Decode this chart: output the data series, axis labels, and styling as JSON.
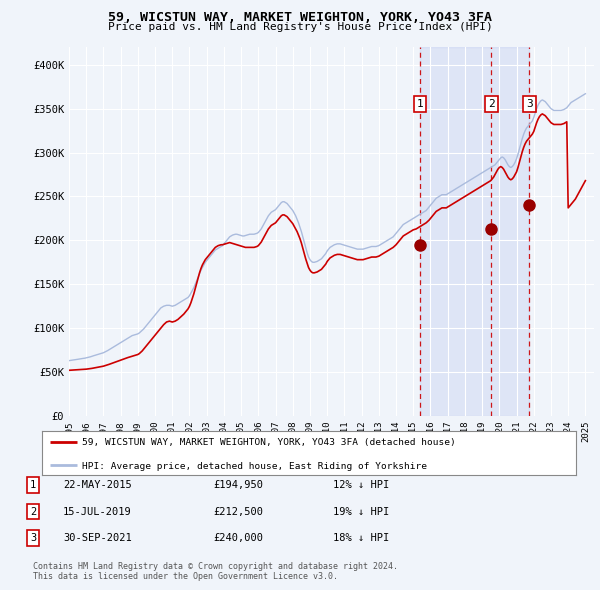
{
  "title": "59, WICSTUN WAY, MARKET WEIGHTON, YORK, YO43 3FA",
  "subtitle": "Price paid vs. HM Land Registry's House Price Index (HPI)",
  "background_color": "#f0f4fa",
  "plot_bg_color": "#f0f4fa",
  "ylim": [
    0,
    420000
  ],
  "yticks": [
    0,
    50000,
    100000,
    150000,
    200000,
    250000,
    300000,
    350000,
    400000
  ],
  "ytick_labels": [
    "£0",
    "£50K",
    "£100K",
    "£150K",
    "£200K",
    "£250K",
    "£300K",
    "£350K",
    "£400K"
  ],
  "xlim_start": 1995.0,
  "xlim_end": 2025.5,
  "xtick_years": [
    1995,
    1996,
    1997,
    1998,
    1999,
    2000,
    2001,
    2002,
    2003,
    2004,
    2005,
    2006,
    2007,
    2008,
    2009,
    2010,
    2011,
    2012,
    2013,
    2014,
    2015,
    2016,
    2017,
    2018,
    2019,
    2020,
    2021,
    2022,
    2023,
    2024,
    2025
  ],
  "red_line_color": "#cc0000",
  "blue_line_color": "#aabbdd",
  "shade_color": "#dde8f5",
  "grid_color": "#ffffff",
  "sale_marker_color": "#990000",
  "sale_vline_color": "#cc0000",
  "legend_label_red": "59, WICSTUN WAY, MARKET WEIGHTON, YORK, YO43 3FA (detached house)",
  "legend_label_blue": "HPI: Average price, detached house, East Riding of Yorkshire",
  "sales": [
    {
      "num": 1,
      "date": "22-MAY-2015",
      "price": 194950,
      "year": 2015.38
    },
    {
      "num": 2,
      "date": "15-JUL-2019",
      "price": 212500,
      "year": 2019.54
    },
    {
      "num": 3,
      "date": "30-SEP-2021",
      "price": 240000,
      "year": 2021.75
    }
  ],
  "sale_rows": [
    {
      "num": 1,
      "date": "22-MAY-2015",
      "price": "£194,950",
      "pct": "12% ↓ HPI"
    },
    {
      "num": 2,
      "date": "15-JUL-2019",
      "price": "£212,500",
      "pct": "19% ↓ HPI"
    },
    {
      "num": 3,
      "date": "30-SEP-2021",
      "price": "£240,000",
      "pct": "18% ↓ HPI"
    }
  ],
  "footer": "Contains HM Land Registry data © Crown copyright and database right 2024.\nThis data is licensed under the Open Government Licence v3.0.",
  "hpi_data": {
    "years": [
      1995.0,
      1995.083,
      1995.167,
      1995.25,
      1995.333,
      1995.417,
      1995.5,
      1995.583,
      1995.667,
      1995.75,
      1995.833,
      1995.917,
      1996.0,
      1996.083,
      1996.167,
      1996.25,
      1996.333,
      1996.417,
      1996.5,
      1996.583,
      1996.667,
      1996.75,
      1996.833,
      1996.917,
      1997.0,
      1997.083,
      1997.167,
      1997.25,
      1997.333,
      1997.417,
      1997.5,
      1997.583,
      1997.667,
      1997.75,
      1997.833,
      1997.917,
      1998.0,
      1998.083,
      1998.167,
      1998.25,
      1998.333,
      1998.417,
      1998.5,
      1998.583,
      1998.667,
      1998.75,
      1998.833,
      1998.917,
      1999.0,
      1999.083,
      1999.167,
      1999.25,
      1999.333,
      1999.417,
      1999.5,
      1999.583,
      1999.667,
      1999.75,
      1999.833,
      1999.917,
      2000.0,
      2000.083,
      2000.167,
      2000.25,
      2000.333,
      2000.417,
      2000.5,
      2000.583,
      2000.667,
      2000.75,
      2000.833,
      2000.917,
      2001.0,
      2001.083,
      2001.167,
      2001.25,
      2001.333,
      2001.417,
      2001.5,
      2001.583,
      2001.667,
      2001.75,
      2001.833,
      2001.917,
      2002.0,
      2002.083,
      2002.167,
      2002.25,
      2002.333,
      2002.417,
      2002.5,
      2002.583,
      2002.667,
      2002.75,
      2002.833,
      2002.917,
      2003.0,
      2003.083,
      2003.167,
      2003.25,
      2003.333,
      2003.417,
      2003.5,
      2003.583,
      2003.667,
      2003.75,
      2003.833,
      2003.917,
      2004.0,
      2004.083,
      2004.167,
      2004.25,
      2004.333,
      2004.417,
      2004.5,
      2004.583,
      2004.667,
      2004.75,
      2004.833,
      2004.917,
      2005.0,
      2005.083,
      2005.167,
      2005.25,
      2005.333,
      2005.417,
      2005.5,
      2005.583,
      2005.667,
      2005.75,
      2005.833,
      2005.917,
      2006.0,
      2006.083,
      2006.167,
      2006.25,
      2006.333,
      2006.417,
      2006.5,
      2006.583,
      2006.667,
      2006.75,
      2006.833,
      2006.917,
      2007.0,
      2007.083,
      2007.167,
      2007.25,
      2007.333,
      2007.417,
      2007.5,
      2007.583,
      2007.667,
      2007.75,
      2007.833,
      2007.917,
      2008.0,
      2008.083,
      2008.167,
      2008.25,
      2008.333,
      2008.417,
      2008.5,
      2008.583,
      2008.667,
      2008.75,
      2008.833,
      2008.917,
      2009.0,
      2009.083,
      2009.167,
      2009.25,
      2009.333,
      2009.417,
      2009.5,
      2009.583,
      2009.667,
      2009.75,
      2009.833,
      2009.917,
      2010.0,
      2010.083,
      2010.167,
      2010.25,
      2010.333,
      2010.417,
      2010.5,
      2010.583,
      2010.667,
      2010.75,
      2010.833,
      2010.917,
      2011.0,
      2011.083,
      2011.167,
      2011.25,
      2011.333,
      2011.417,
      2011.5,
      2011.583,
      2011.667,
      2011.75,
      2011.833,
      2011.917,
      2012.0,
      2012.083,
      2012.167,
      2012.25,
      2012.333,
      2012.417,
      2012.5,
      2012.583,
      2012.667,
      2012.75,
      2012.833,
      2012.917,
      2013.0,
      2013.083,
      2013.167,
      2013.25,
      2013.333,
      2013.417,
      2013.5,
      2013.583,
      2013.667,
      2013.75,
      2013.833,
      2013.917,
      2014.0,
      2014.083,
      2014.167,
      2014.25,
      2014.333,
      2014.417,
      2014.5,
      2014.583,
      2014.667,
      2014.75,
      2014.833,
      2014.917,
      2015.0,
      2015.083,
      2015.167,
      2015.25,
      2015.333,
      2015.417,
      2015.5,
      2015.583,
      2015.667,
      2015.75,
      2015.833,
      2015.917,
      2016.0,
      2016.083,
      2016.167,
      2016.25,
      2016.333,
      2016.417,
      2016.5,
      2016.583,
      2016.667,
      2016.75,
      2016.833,
      2016.917,
      2017.0,
      2017.083,
      2017.167,
      2017.25,
      2017.333,
      2017.417,
      2017.5,
      2017.583,
      2017.667,
      2017.75,
      2017.833,
      2017.917,
      2018.0,
      2018.083,
      2018.167,
      2018.25,
      2018.333,
      2018.417,
      2018.5,
      2018.583,
      2018.667,
      2018.75,
      2018.833,
      2018.917,
      2019.0,
      2019.083,
      2019.167,
      2019.25,
      2019.333,
      2019.417,
      2019.5,
      2019.583,
      2019.667,
      2019.75,
      2019.833,
      2019.917,
      2020.0,
      2020.083,
      2020.167,
      2020.25,
      2020.333,
      2020.417,
      2020.5,
      2020.583,
      2020.667,
      2020.75,
      2020.833,
      2020.917,
      2021.0,
      2021.083,
      2021.167,
      2021.25,
      2021.333,
      2021.417,
      2021.5,
      2021.583,
      2021.667,
      2021.75,
      2021.833,
      2021.917,
      2022.0,
      2022.083,
      2022.167,
      2022.25,
      2022.333,
      2022.417,
      2022.5,
      2022.583,
      2022.667,
      2022.75,
      2022.833,
      2022.917,
      2023.0,
      2023.083,
      2023.167,
      2023.25,
      2023.333,
      2023.417,
      2023.5,
      2023.583,
      2023.667,
      2023.75,
      2023.833,
      2023.917,
      2024.0,
      2024.083,
      2024.167,
      2024.25,
      2024.333,
      2024.417,
      2024.5,
      2024.583,
      2024.667,
      2024.75,
      2024.833,
      2024.917,
      2025.0
    ],
    "hpi_values": [
      63000,
      63200,
      63500,
      63800,
      64000,
      64200,
      64500,
      64800,
      65100,
      65400,
      65600,
      65800,
      66200,
      66500,
      66900,
      67400,
      68000,
      68500,
      69000,
      69500,
      70000,
      70500,
      71000,
      71500,
      72000,
      72800,
      73600,
      74500,
      75500,
      76500,
      77500,
      78500,
      79500,
      80500,
      81500,
      82500,
      83500,
      84500,
      85500,
      86500,
      87500,
      88500,
      89500,
      90500,
      91500,
      92000,
      92500,
      93000,
      93500,
      94500,
      96000,
      97500,
      99000,
      101000,
      103000,
      105000,
      107000,
      109000,
      111000,
      113000,
      115000,
      117000,
      119000,
      121000,
      123000,
      124000,
      125000,
      125500,
      126000,
      126000,
      126000,
      125500,
      125000,
      125500,
      126000,
      127000,
      128000,
      129000,
      130000,
      131000,
      132000,
      133000,
      134000,
      135000,
      137000,
      140000,
      143000,
      146000,
      150000,
      154000,
      158000,
      162000,
      166000,
      169000,
      172000,
      175000,
      177000,
      179000,
      181000,
      183000,
      185000,
      187000,
      189000,
      190000,
      191000,
      192000,
      193000,
      194000,
      196000,
      198000,
      200000,
      202000,
      204000,
      205000,
      206000,
      206500,
      207000,
      207000,
      206500,
      206000,
      205500,
      205000,
      205000,
      205500,
      206000,
      206500,
      207000,
      207000,
      207000,
      207000,
      207500,
      208000,
      209000,
      211000,
      213000,
      216000,
      219000,
      222000,
      225000,
      228000,
      230000,
      232000,
      233000,
      234000,
      235000,
      237000,
      239000,
      241000,
      243000,
      244000,
      244000,
      243000,
      242000,
      240000,
      238000,
      236000,
      234000,
      231000,
      228000,
      224000,
      220000,
      215000,
      210000,
      204000,
      198000,
      192000,
      186000,
      181000,
      178000,
      176000,
      175000,
      175000,
      175500,
      176000,
      177000,
      178000,
      179000,
      181000,
      183000,
      185000,
      188000,
      190000,
      192000,
      193000,
      194000,
      195000,
      195500,
      196000,
      196000,
      196000,
      195500,
      195000,
      194500,
      194000,
      193500,
      193000,
      192500,
      192000,
      191500,
      191000,
      190500,
      190000,
      190000,
      190000,
      190000,
      190000,
      190500,
      191000,
      191500,
      192000,
      192500,
      193000,
      193000,
      193000,
      193000,
      193500,
      194000,
      195000,
      196000,
      197000,
      198000,
      199000,
      200000,
      201000,
      202000,
      203000,
      204000,
      206000,
      208000,
      210000,
      212000,
      214000,
      216000,
      218000,
      219000,
      220000,
      221000,
      222000,
      223000,
      224000,
      225000,
      226000,
      227000,
      228000,
      229000,
      230000,
      231000,
      232000,
      233000,
      234000,
      236000,
      238000,
      240000,
      242000,
      244000,
      246000,
      248000,
      249000,
      250000,
      251000,
      252000,
      252000,
      252000,
      252000,
      253000,
      254000,
      255000,
      256000,
      257000,
      258000,
      259000,
      260000,
      261000,
      262000,
      263000,
      264000,
      265000,
      266000,
      267000,
      268000,
      269000,
      270000,
      271000,
      272000,
      273000,
      274000,
      275000,
      276000,
      277000,
      278000,
      279000,
      280000,
      281000,
      282000,
      283000,
      284000,
      285000,
      286000,
      288000,
      290000,
      292000,
      294000,
      295000,
      294000,
      292000,
      289000,
      286000,
      284000,
      283000,
      284000,
      286000,
      289000,
      293000,
      298000,
      304000,
      310000,
      316000,
      321000,
      325000,
      328000,
      330000,
      332000,
      334000,
      336000,
      340000,
      345000,
      350000,
      354000,
      357000,
      359000,
      360000,
      359000,
      358000,
      356000,
      354000,
      352000,
      350000,
      349000,
      348000,
      348000,
      348000,
      348000,
      348000,
      348000,
      348500,
      349000,
      350000,
      351000,
      353000,
      355000,
      357000,
      358000,
      359000,
      360000,
      361000,
      362000,
      363000,
      364000,
      365000,
      366000,
      367000
    ],
    "red_values": [
      52000,
      52100,
      52200,
      52300,
      52400,
      52500,
      52600,
      52700,
      52800,
      52900,
      53000,
      53100,
      53300,
      53500,
      53700,
      53900,
      54200,
      54500,
      54800,
      55100,
      55400,
      55700,
      56000,
      56300,
      56700,
      57200,
      57700,
      58200,
      58800,
      59400,
      60000,
      60600,
      61200,
      61800,
      62400,
      63000,
      63600,
      64200,
      64800,
      65400,
      66000,
      66500,
      67000,
      67500,
      68000,
      68500,
      69000,
      69500,
      70000,
      71000,
      72500,
      74000,
      76000,
      78000,
      80000,
      82000,
      84000,
      86000,
      88000,
      90000,
      92000,
      94000,
      96000,
      98000,
      100000,
      102000,
      104000,
      105500,
      107000,
      107500,
      108000,
      107500,
      107000,
      107500,
      108000,
      109000,
      110000,
      111500,
      113000,
      114500,
      116000,
      118000,
      120000,
      122000,
      125000,
      129000,
      134000,
      139000,
      145000,
      151000,
      157000,
      163000,
      168000,
      172000,
      175000,
      178000,
      180000,
      182000,
      184000,
      186000,
      188000,
      190000,
      192000,
      193000,
      194000,
      194500,
      195000,
      195000,
      195500,
      196000,
      196500,
      197000,
      197500,
      197000,
      196500,
      196000,
      195500,
      195000,
      194500,
      194000,
      193500,
      193000,
      192500,
      192000,
      192000,
      192000,
      192000,
      192000,
      192000,
      192000,
      192500,
      193000,
      194000,
      196000,
      198000,
      201000,
      204000,
      207000,
      210000,
      213000,
      215000,
      217000,
      218000,
      219000,
      220000,
      222000,
      224000,
      226000,
      228000,
      229000,
      229000,
      228000,
      227000,
      225000,
      223000,
      221000,
      219000,
      216000,
      213000,
      210000,
      206000,
      202000,
      197000,
      191000,
      185000,
      179000,
      174000,
      169000,
      166000,
      164000,
      163000,
      163000,
      163500,
      164000,
      165000,
      166000,
      167000,
      169000,
      171000,
      173000,
      176000,
      178000,
      180000,
      181000,
      182000,
      183000,
      183500,
      184000,
      184000,
      184000,
      183500,
      183000,
      182500,
      182000,
      181500,
      181000,
      180500,
      180000,
      179500,
      179000,
      178500,
      178000,
      178000,
      178000,
      178000,
      178000,
      178500,
      179000,
      179500,
      180000,
      180500,
      181000,
      181000,
      181000,
      181000,
      181500,
      182000,
      183000,
      184000,
      185000,
      186000,
      187000,
      188000,
      189000,
      190000,
      191000,
      192000,
      193500,
      195000,
      197000,
      199000,
      201000,
      203000,
      205000,
      206000,
      207000,
      208000,
      209000,
      210000,
      211000,
      212000,
      212500,
      213000,
      214000,
      215000,
      216000,
      217000,
      218000,
      219000,
      220000,
      221500,
      223000,
      225000,
      227000,
      229000,
      231000,
      233000,
      234000,
      235000,
      236000,
      237000,
      237000,
      237000,
      237000,
      238000,
      239000,
      240000,
      241000,
      242000,
      243000,
      244000,
      245000,
      246000,
      247000,
      248000,
      249000,
      250000,
      251000,
      252000,
      253000,
      254000,
      255000,
      256000,
      257000,
      258000,
      259000,
      260000,
      261000,
      262000,
      263000,
      264000,
      265000,
      266000,
      267000,
      268000,
      270000,
      272000,
      275000,
      278000,
      281000,
      283000,
      284000,
      283000,
      281000,
      278000,
      275000,
      272000,
      270000,
      269000,
      270000,
      272000,
      275000,
      278000,
      283000,
      289000,
      295000,
      301000,
      306000,
      310000,
      313000,
      315000,
      317000,
      319000,
      321000,
      324000,
      329000,
      334000,
      338000,
      341000,
      343000,
      344000,
      343000,
      342000,
      340000,
      338000,
      336000,
      334000,
      333000,
      332000,
      332000,
      332000,
      332000,
      332000,
      332000,
      332500,
      333000,
      334000,
      335000,
      237000,
      239000,
      241000,
      243000,
      245000,
      247000,
      250000,
      253000,
      256000,
      259000,
      262000,
      265000,
      268000
    ]
  }
}
